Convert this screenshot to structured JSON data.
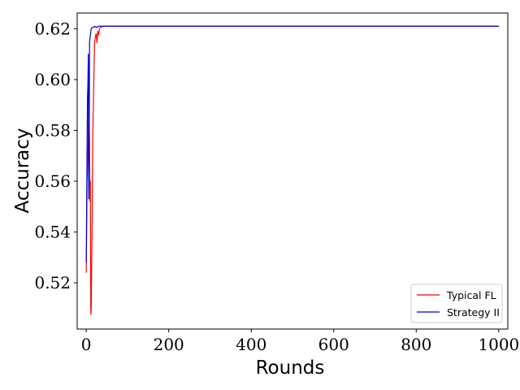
{
  "chart_data": {
    "type": "line",
    "title": "",
    "xlabel": "Rounds",
    "ylabel": "Accuracy",
    "xlim": [
      -22,
      1022
    ],
    "ylim": [
      0.5018,
      0.6262
    ],
    "xticks": [
      0,
      200,
      400,
      600,
      800,
      1000
    ],
    "yticks": [
      0.52,
      0.54,
      0.56,
      0.58,
      0.6,
      0.62
    ],
    "ytick_labels": [
      "0.52",
      "0.54",
      "0.56",
      "0.58",
      "0.60",
      "0.62"
    ],
    "grid": false,
    "legend_position": "lower-right",
    "series": [
      {
        "name": "Typical FL",
        "color": "#ff0000",
        "x": [
          0,
          2,
          4,
          6,
          8,
          9,
          10,
          11,
          12,
          13,
          14,
          15,
          16,
          18,
          20,
          22,
          24,
          26,
          28,
          30,
          32,
          34,
          36,
          40,
          50,
          100,
          200,
          400,
          600,
          800,
          1000
        ],
        "y": [
          0.524,
          0.56,
          0.572,
          0.59,
          0.575,
          0.552,
          0.56,
          0.5075,
          0.51,
          0.525,
          0.54,
          0.56,
          0.58,
          0.597,
          0.614,
          0.617,
          0.618,
          0.6145,
          0.619,
          0.6175,
          0.62,
          0.6205,
          0.6205,
          0.621,
          0.621,
          0.621,
          0.621,
          0.621,
          0.621,
          0.621,
          0.621
        ]
      },
      {
        "name": "Strategy II",
        "color": "#0000cc",
        "x": [
          0,
          1,
          2,
          3,
          4,
          5,
          6,
          7,
          8,
          10,
          12,
          14,
          16,
          18,
          20,
          25,
          30,
          35,
          40,
          50,
          100,
          200,
          400,
          600,
          800,
          1000
        ],
        "y": [
          0.528,
          0.552,
          0.575,
          0.593,
          0.598,
          0.61,
          0.553,
          0.57,
          0.615,
          0.6175,
          0.62,
          0.6205,
          0.6205,
          0.6205,
          0.621,
          0.6205,
          0.621,
          0.621,
          0.621,
          0.621,
          0.621,
          0.621,
          0.621,
          0.621,
          0.621,
          0.621
        ]
      }
    ]
  },
  "colors": {
    "axes": "#000000",
    "legend_border": "#cccccc"
  }
}
